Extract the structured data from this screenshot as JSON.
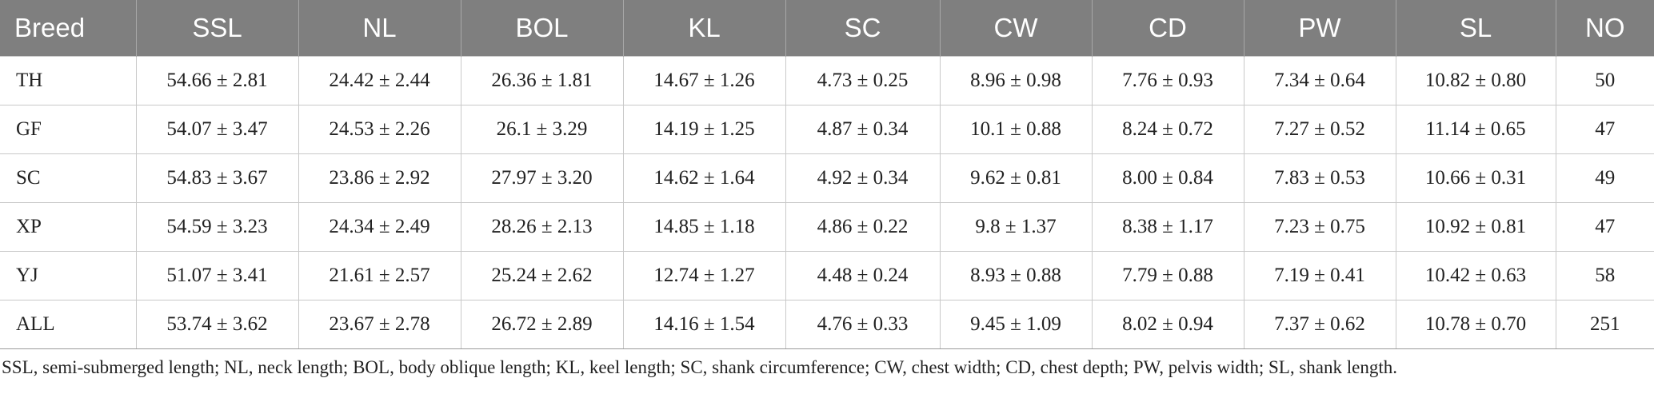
{
  "table": {
    "headers": [
      "Breed",
      "SSL",
      "NL",
      "BOL",
      "KL",
      "SC",
      "CW",
      "CD",
      "PW",
      "SL",
      "NO"
    ],
    "rows": [
      [
        "TH",
        "54.66 ± 2.81",
        "24.42 ± 2.44",
        "26.36 ± 1.81",
        "14.67 ± 1.26",
        "4.73 ± 0.25",
        "8.96 ± 0.98",
        "7.76 ± 0.93",
        "7.34 ± 0.64",
        "10.82 ± 0.80",
        "50"
      ],
      [
        "GF",
        "54.07 ± 3.47",
        "24.53 ± 2.26",
        "26.1 ± 3.29",
        "14.19 ± 1.25",
        "4.87 ± 0.34",
        "10.1 ± 0.88",
        "8.24 ± 0.72",
        "7.27 ± 0.52",
        "11.14 ± 0.65",
        "47"
      ],
      [
        "SC",
        "54.83 ± 3.67",
        "23.86 ± 2.92",
        "27.97 ± 3.20",
        "14.62 ± 1.64",
        "4.92 ± 0.34",
        "9.62 ± 0.81",
        "8.00 ± 0.84",
        "7.83 ± 0.53",
        "10.66 ± 0.31",
        "49"
      ],
      [
        "XP",
        "54.59 ± 3.23",
        "24.34 ± 2.49",
        "28.26 ± 2.13",
        "14.85 ± 1.18",
        "4.86 ± 0.22",
        "9.8 ± 1.37",
        "8.38 ± 1.17",
        "7.23 ± 0.75",
        "10.92 ± 0.81",
        "47"
      ],
      [
        "YJ",
        "51.07 ± 3.41",
        "21.61 ± 2.57",
        "25.24 ± 2.62",
        "12.74 ± 1.27",
        "4.48 ± 0.24",
        "8.93 ± 0.88",
        "7.79 ± 0.88",
        "7.19 ± 0.41",
        "10.42 ± 0.63",
        "58"
      ],
      [
        "ALL",
        "53.74 ± 3.62",
        "23.67 ± 2.78",
        "26.72 ± 2.89",
        "14.16 ± 1.54",
        "4.76 ± 0.33",
        "9.45 ± 1.09",
        "8.02 ± 0.94",
        "7.37 ± 0.62",
        "10.78 ± 0.70",
        "251"
      ]
    ]
  },
  "footnote": "SSL, semi-submerged length; NL, neck length; BOL, body oblique length; KL, keel length; SC, shank circumference; CW, chest width; CD, chest depth; PW, pelvis width; SL, shank length.",
  "colors": {
    "header_bg": "#7f7f7f",
    "header_text": "#ffffff",
    "grid_line": "#c9c9c9"
  }
}
